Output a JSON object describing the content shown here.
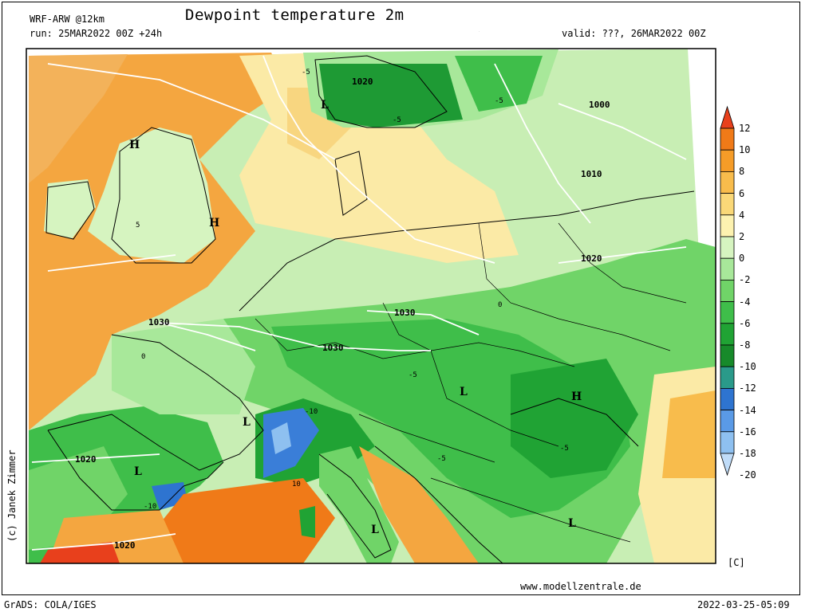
{
  "header": {
    "model": "WRF-ARW @12km",
    "title": "Dewpoint temperature 2m",
    "run": "run: 25MAR2022 00Z +24h",
    "valid": "valid: ???, 26MAR2022 00Z"
  },
  "credit": "(c) Janek Zimmer",
  "website": "www.modellzentrale.de",
  "software": "GrADS: COLA/IGES",
  "timestamp": "2022-03-25-05:09",
  "colorbar": {
    "unit": "[C]",
    "levels": [
      "12",
      "10",
      "8",
      "6",
      "4",
      "2",
      "0",
      "-2",
      "-4",
      "-6",
      "-8",
      "-10",
      "-12",
      "-14",
      "-16",
      "-18",
      "-20"
    ],
    "colors": [
      "#e8401c",
      "#f07a18",
      "#f59c28",
      "#f8bc4c",
      "#fad878",
      "#fdf2b0",
      "#d6f4c0",
      "#a8e89a",
      "#70d468",
      "#3fbe4a",
      "#20a334",
      "#178a2a",
      "#2a9a8a",
      "#2e74d0",
      "#5a9ae6",
      "#8ec0f0",
      "#c0dcf8"
    ]
  },
  "map_labels": {
    "isobars": [
      "1020",
      "1000",
      "1010",
      "1020",
      "1030",
      "1030",
      "1030",
      "1020",
      "1020"
    ],
    "pressure_centers": [
      "H",
      "H",
      "L",
      "L",
      "L",
      "L",
      "H",
      "L",
      "L",
      "L"
    ],
    "contour_values": [
      "-5",
      "-5",
      "-5",
      "-5",
      "-10",
      "-10",
      "-5",
      "-5",
      "5",
      "10",
      "0",
      "0"
    ]
  },
  "colors": {
    "orange": "#f4a640",
    "red_orange": "#f07a18",
    "light_yellow": "#fbeaa6",
    "light_green": "#c8eeb4",
    "green": "#6ad066",
    "dark_green": "#1e9a34",
    "blue": "#3a7ed8"
  }
}
